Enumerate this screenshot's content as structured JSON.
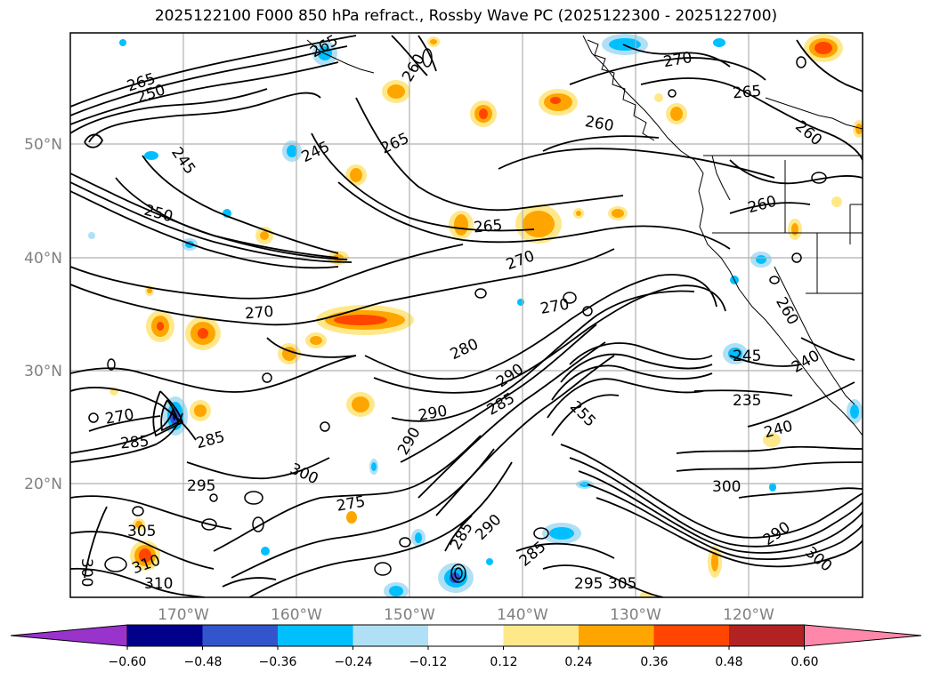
{
  "title": "2025122100 F000 850 hPa refract., Rossby Wave PC (2025122300 - 2025122700)",
  "latitude_labels": [
    "50°N",
    "40°N",
    "30°N",
    "20°N"
  ],
  "longitude_labels": [
    "170°W",
    "160°W",
    "150°W",
    "140°W",
    "130°W",
    "120°W"
  ],
  "contour_labels": [
    "265",
    "250",
    "245",
    "250",
    "260",
    "265",
    "245",
    "265",
    "270",
    "260",
    "265",
    "260",
    "260",
    "265",
    "270",
    "270",
    "270",
    "280",
    "290",
    "285",
    "290",
    "290",
    "270",
    "285",
    "285",
    "295",
    "300",
    "305",
    "310",
    "310",
    "300",
    "275",
    "290",
    "285",
    "285",
    "295",
    "305",
    "255",
    "245",
    "235",
    "240",
    "240",
    "300",
    "290",
    "300",
    "260"
  ],
  "colorbar": {
    "ticks": [
      "−0.60",
      "−0.48",
      "−0.36",
      "−0.24",
      "−0.12",
      "0.12",
      "0.24",
      "0.36",
      "0.48",
      "0.60"
    ],
    "colors": [
      "#9933cc",
      "#00008b",
      "#3355cc",
      "#00bfff",
      "#b0e0f5",
      "#ffffff",
      "#ffe88a",
      "#ffa500",
      "#ff4500",
      "#b22222",
      "#ff88aa"
    ]
  },
  "colors": {
    "frame": "#000000",
    "grid": "#b0b0b0",
    "coast": "#000000",
    "contour": "#000000"
  }
}
